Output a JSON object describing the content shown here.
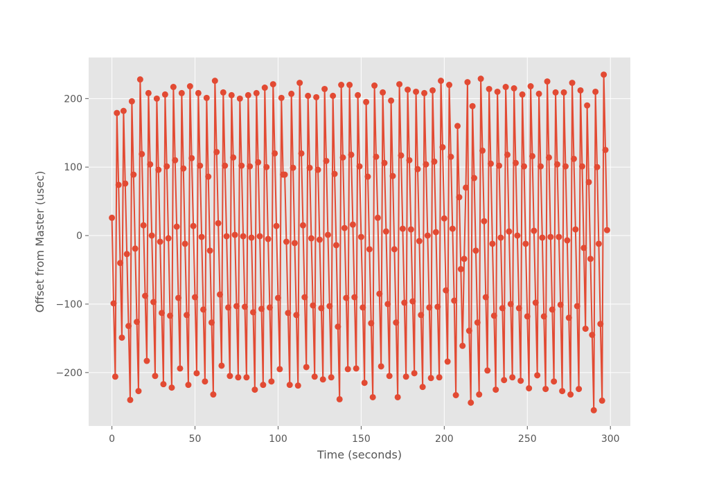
{
  "chart_data": {
    "type": "line",
    "title": "",
    "xlabel": "Time (seconds)",
    "ylabel": "Offset from Master (usec)",
    "xlim": [
      -14,
      312
    ],
    "ylim": [
      -278,
      260
    ],
    "xticks": [
      0,
      50,
      100,
      150,
      200,
      250,
      300
    ],
    "yticks": [
      -200,
      -100,
      0,
      100,
      200
    ],
    "xtick_labels": [
      "0",
      "50",
      "100",
      "150",
      "200",
      "250",
      "300"
    ],
    "ytick_labels": [
      "−200",
      "−100",
      "0",
      "100",
      "200"
    ],
    "grid": true,
    "colors": {
      "line": "#e24a33",
      "background": "#e5e5e5",
      "grid": "#ffffff"
    },
    "series": [
      {
        "x": [
          0,
          1,
          2,
          3,
          4,
          5,
          6,
          7,
          8,
          9,
          10,
          11,
          12,
          13,
          14,
          15,
          16,
          17,
          18,
          19,
          20,
          21,
          22,
          23,
          24,
          25,
          26,
          27,
          28,
          29,
          30,
          31,
          32,
          33,
          34,
          35,
          36,
          37,
          38,
          39,
          40,
          41,
          42,
          43,
          44,
          45,
          46,
          47,
          48,
          49,
          50,
          51,
          52,
          53,
          54,
          55,
          56,
          57,
          58,
          59,
          60,
          61,
          62,
          63,
          64,
          65,
          66,
          67,
          68,
          69,
          70,
          71,
          72,
          73,
          74,
          75,
          76,
          77,
          78,
          79,
          80,
          81,
          82,
          83,
          84,
          85,
          86,
          87,
          88,
          89,
          90,
          91,
          92,
          93,
          94,
          95,
          96,
          97,
          98,
          99,
          100,
          101,
          102,
          103,
          104,
          105,
          106,
          107,
          108,
          109,
          110,
          111,
          112,
          113,
          114,
          115,
          116,
          117,
          118,
          119,
          120,
          121,
          122,
          123,
          124,
          125,
          126,
          127,
          128,
          129,
          130,
          131,
          132,
          133,
          134,
          135,
          136,
          137,
          138,
          139,
          140,
          141,
          142,
          143,
          144,
          145,
          146,
          147,
          148,
          149,
          150,
          151,
          152,
          153,
          154,
          155,
          156,
          157,
          158,
          159,
          160,
          161,
          162,
          163,
          164,
          165,
          166,
          167,
          168,
          169,
          170,
          171,
          172,
          173,
          174,
          175,
          176,
          177,
          178,
          179,
          180,
          181,
          182,
          183,
          184,
          185,
          186,
          187,
          188,
          189,
          190,
          191,
          192,
          193,
          194,
          195,
          196,
          197,
          198,
          199,
          200,
          201,
          202,
          203,
          204,
          205,
          206,
          207,
          208,
          209,
          210,
          211,
          212,
          213,
          214,
          215,
          216,
          217,
          218,
          219,
          220,
          221,
          222,
          223,
          224,
          225,
          226,
          227,
          228,
          229,
          230,
          231,
          232,
          233,
          234,
          235,
          236,
          237,
          238,
          239,
          240,
          241,
          242,
          243,
          244,
          245,
          246,
          247,
          248,
          249,
          250,
          251,
          252,
          253,
          254,
          255,
          256,
          257,
          258,
          259,
          260,
          261,
          262,
          263,
          264,
          265,
          266,
          267,
          268,
          269,
          270,
          271,
          272,
          273,
          274,
          275,
          276,
          277,
          278,
          279,
          280,
          281,
          282,
          283,
          284,
          285,
          286,
          287,
          288,
          289,
          290,
          291,
          292,
          293,
          294,
          295,
          296,
          297,
          298
        ],
        "y": [
          26,
          -99,
          -206,
          179,
          74,
          -40,
          -149,
          182,
          76,
          -27,
          -132,
          -240,
          196,
          89,
          -19,
          -126,
          -227,
          228,
          119,
          15,
          -88,
          -183,
          208,
          104,
          0,
          -97,
          -205,
          200,
          96,
          -9,
          -113,
          -217,
          206,
          101,
          -4,
          -117,
          -222,
          217,
          110,
          13,
          -91,
          -194,
          208,
          98,
          -12,
          -116,
          -218,
          218,
          113,
          14,
          -90,
          -201,
          208,
          102,
          -2,
          -108,
          -213,
          201,
          86,
          -22,
          -127,
          -232,
          226,
          122,
          18,
          -86,
          -190,
          209,
          102,
          -1,
          -105,
          -205,
          205,
          114,
          1,
          -103,
          -207,
          200,
          102,
          -1,
          -104,
          -207,
          205,
          101,
          -3,
          -112,
          -225,
          208,
          107,
          -1,
          -107,
          -218,
          216,
          100,
          -5,
          -105,
          -213,
          221,
          120,
          14,
          -91,
          -195,
          201,
          89,
          89,
          -9,
          -113,
          -218,
          207,
          99,
          -11,
          -116,
          -219,
          223,
          120,
          15,
          -90,
          -192,
          204,
          99,
          -4,
          -102,
          -206,
          202,
          96,
          -6,
          -106,
          -210,
          214,
          109,
          1,
          -103,
          -207,
          204,
          90,
          -14,
          -133,
          -239,
          220,
          114,
          11,
          -91,
          -195,
          220,
          118,
          16,
          -90,
          -194,
          205,
          101,
          -2,
          -105,
          -215,
          195,
          86,
          -20,
          -128,
          -236,
          219,
          115,
          26,
          -85,
          -191,
          209,
          106,
          6,
          -100,
          -205,
          197,
          87,
          -20,
          -127,
          -236,
          221,
          117,
          10,
          -98,
          -206,
          213,
          110,
          9,
          -96,
          -201,
          210,
          97,
          -8,
          -116,
          -221,
          208,
          104,
          0,
          -105,
          -208,
          212,
          108,
          5,
          -104,
          -207,
          226,
          129,
          25,
          -80,
          -184,
          220,
          115,
          10,
          -95,
          -233,
          160,
          56,
          -49,
          -161,
          -34,
          70,
          224,
          -139,
          -244,
          189,
          84,
          -22,
          -127,
          -232,
          229,
          124,
          21,
          -90,
          -197,
          214,
          105,
          -12,
          -117,
          -225,
          210,
          102,
          -3,
          -106,
          -211,
          217,
          118,
          6,
          -100,
          -207,
          215,
          106,
          0,
          -106,
          -212,
          206,
          101,
          -12,
          -118,
          -223,
          218,
          116,
          7,
          -98,
          -204,
          207,
          101,
          -3,
          -118,
          -224,
          225,
          114,
          -2,
          -108,
          -213,
          209,
          104,
          -2,
          -101,
          -227,
          209,
          101,
          -7,
          -120,
          -232,
          223,
          112,
          9,
          -103,
          -224,
          212,
          101,
          -18,
          -136,
          190,
          78,
          -34,
          -145,
          -255,
          210,
          100,
          -12,
          -129,
          -241,
          235,
          125,
          8
        ]
      }
    ]
  }
}
